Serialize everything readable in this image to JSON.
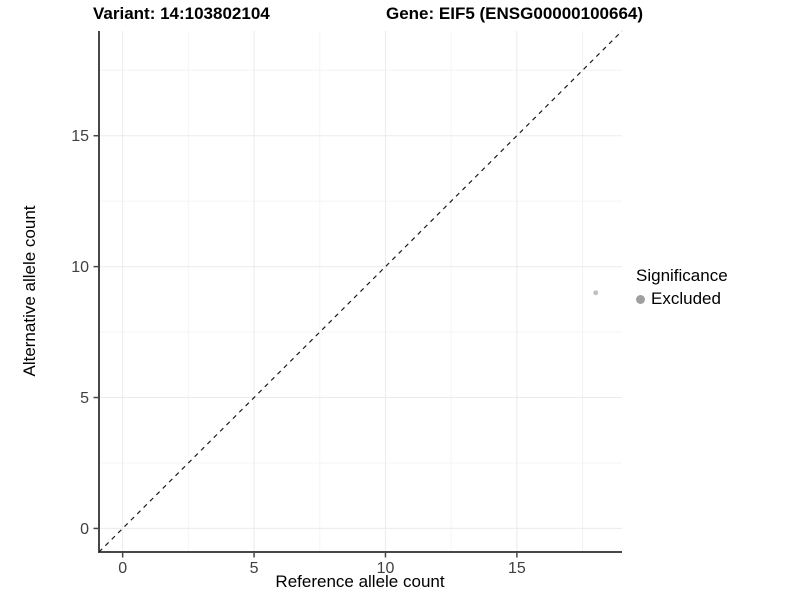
{
  "titles": {
    "variant": "Variant: 14:103802104",
    "gene": "Gene: EIF5 (ENSG00000100664)"
  },
  "chart_data": {
    "type": "scatter",
    "title_left": "Variant: 14:103802104",
    "title_right": "Gene: EIF5 (ENSG00000100664)",
    "xlabel": "Reference allele count",
    "ylabel": "Alternative allele count",
    "xlim": [
      -0.9,
      19.0
    ],
    "ylim": [
      -0.9,
      19.0
    ],
    "x_ticks": [
      0,
      5,
      10,
      15
    ],
    "y_ticks": [
      0,
      5,
      10,
      15
    ],
    "x_minor_gridlines": [
      2.5,
      7.5,
      12.5,
      17.5
    ],
    "y_minor_gridlines": [
      2.5,
      7.5,
      12.5,
      17.5
    ],
    "grid": true,
    "points": [
      {
        "x": 18,
        "y": 9,
        "series": "Excluded"
      }
    ],
    "identity_line": {
      "style": "dashed",
      "from": [
        -0.9,
        -0.9
      ],
      "to": [
        19.0,
        19.0
      ]
    },
    "legend": {
      "title": "Significance",
      "position": "right",
      "items": [
        {
          "label": "Excluded",
          "color": "#9f9f9f"
        }
      ]
    },
    "colors": {
      "point": "#bfbfbf",
      "identity_line": "#1a1a1a",
      "grid_major": "#ebebeb",
      "grid_minor": "#f4f4f4",
      "axis_line": "#474747",
      "tick_label": "#404040",
      "background": "#ffffff"
    }
  }
}
